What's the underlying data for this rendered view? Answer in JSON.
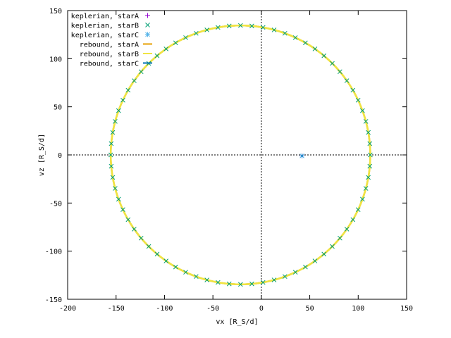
{
  "chart_data": {
    "type": "scatter",
    "title": "",
    "xlabel": "vx [R_S/d]",
    "ylabel": "vz [R_S/d]",
    "xlim": [
      -200,
      150
    ],
    "ylim": [
      -150,
      150
    ],
    "xticks": [
      -200,
      -150,
      -100,
      -50,
      0,
      50,
      100,
      150
    ],
    "yticks": [
      -150,
      -100,
      -50,
      0,
      50,
      100,
      150
    ],
    "grid": false,
    "zero_axes": true,
    "legend_position": "top-left",
    "orbit": {
      "center_vx": -21.5,
      "center_vz": 0,
      "semi_vx": 134,
      "semi_vz": 134.5,
      "keplerian_marker_count": 72
    },
    "fixed_point": {
      "vx": 42,
      "vz": -1
    },
    "series": [
      {
        "name": "keplerian, starA",
        "style": "plus",
        "color": "#9400d3",
        "data": [
          [
            42,
            -1
          ]
        ]
      },
      {
        "name": "keplerian, starB",
        "style": "cross",
        "color": "#009e73",
        "data": "orbit"
      },
      {
        "name": "keplerian, starC",
        "style": "star",
        "color": "#56b4e9",
        "data": [
          [
            42,
            -1
          ]
        ]
      },
      {
        "name": "rebound, starA",
        "style": "line",
        "color": "#e69f00",
        "data": "orbit"
      },
      {
        "name": "rebound, starB",
        "style": "line",
        "color": "#f0e442",
        "data": "orbit"
      },
      {
        "name": "rebound, starC",
        "style": "line",
        "color": "#0072b2",
        "data": [
          [
            42,
            -1
          ]
        ]
      }
    ]
  }
}
